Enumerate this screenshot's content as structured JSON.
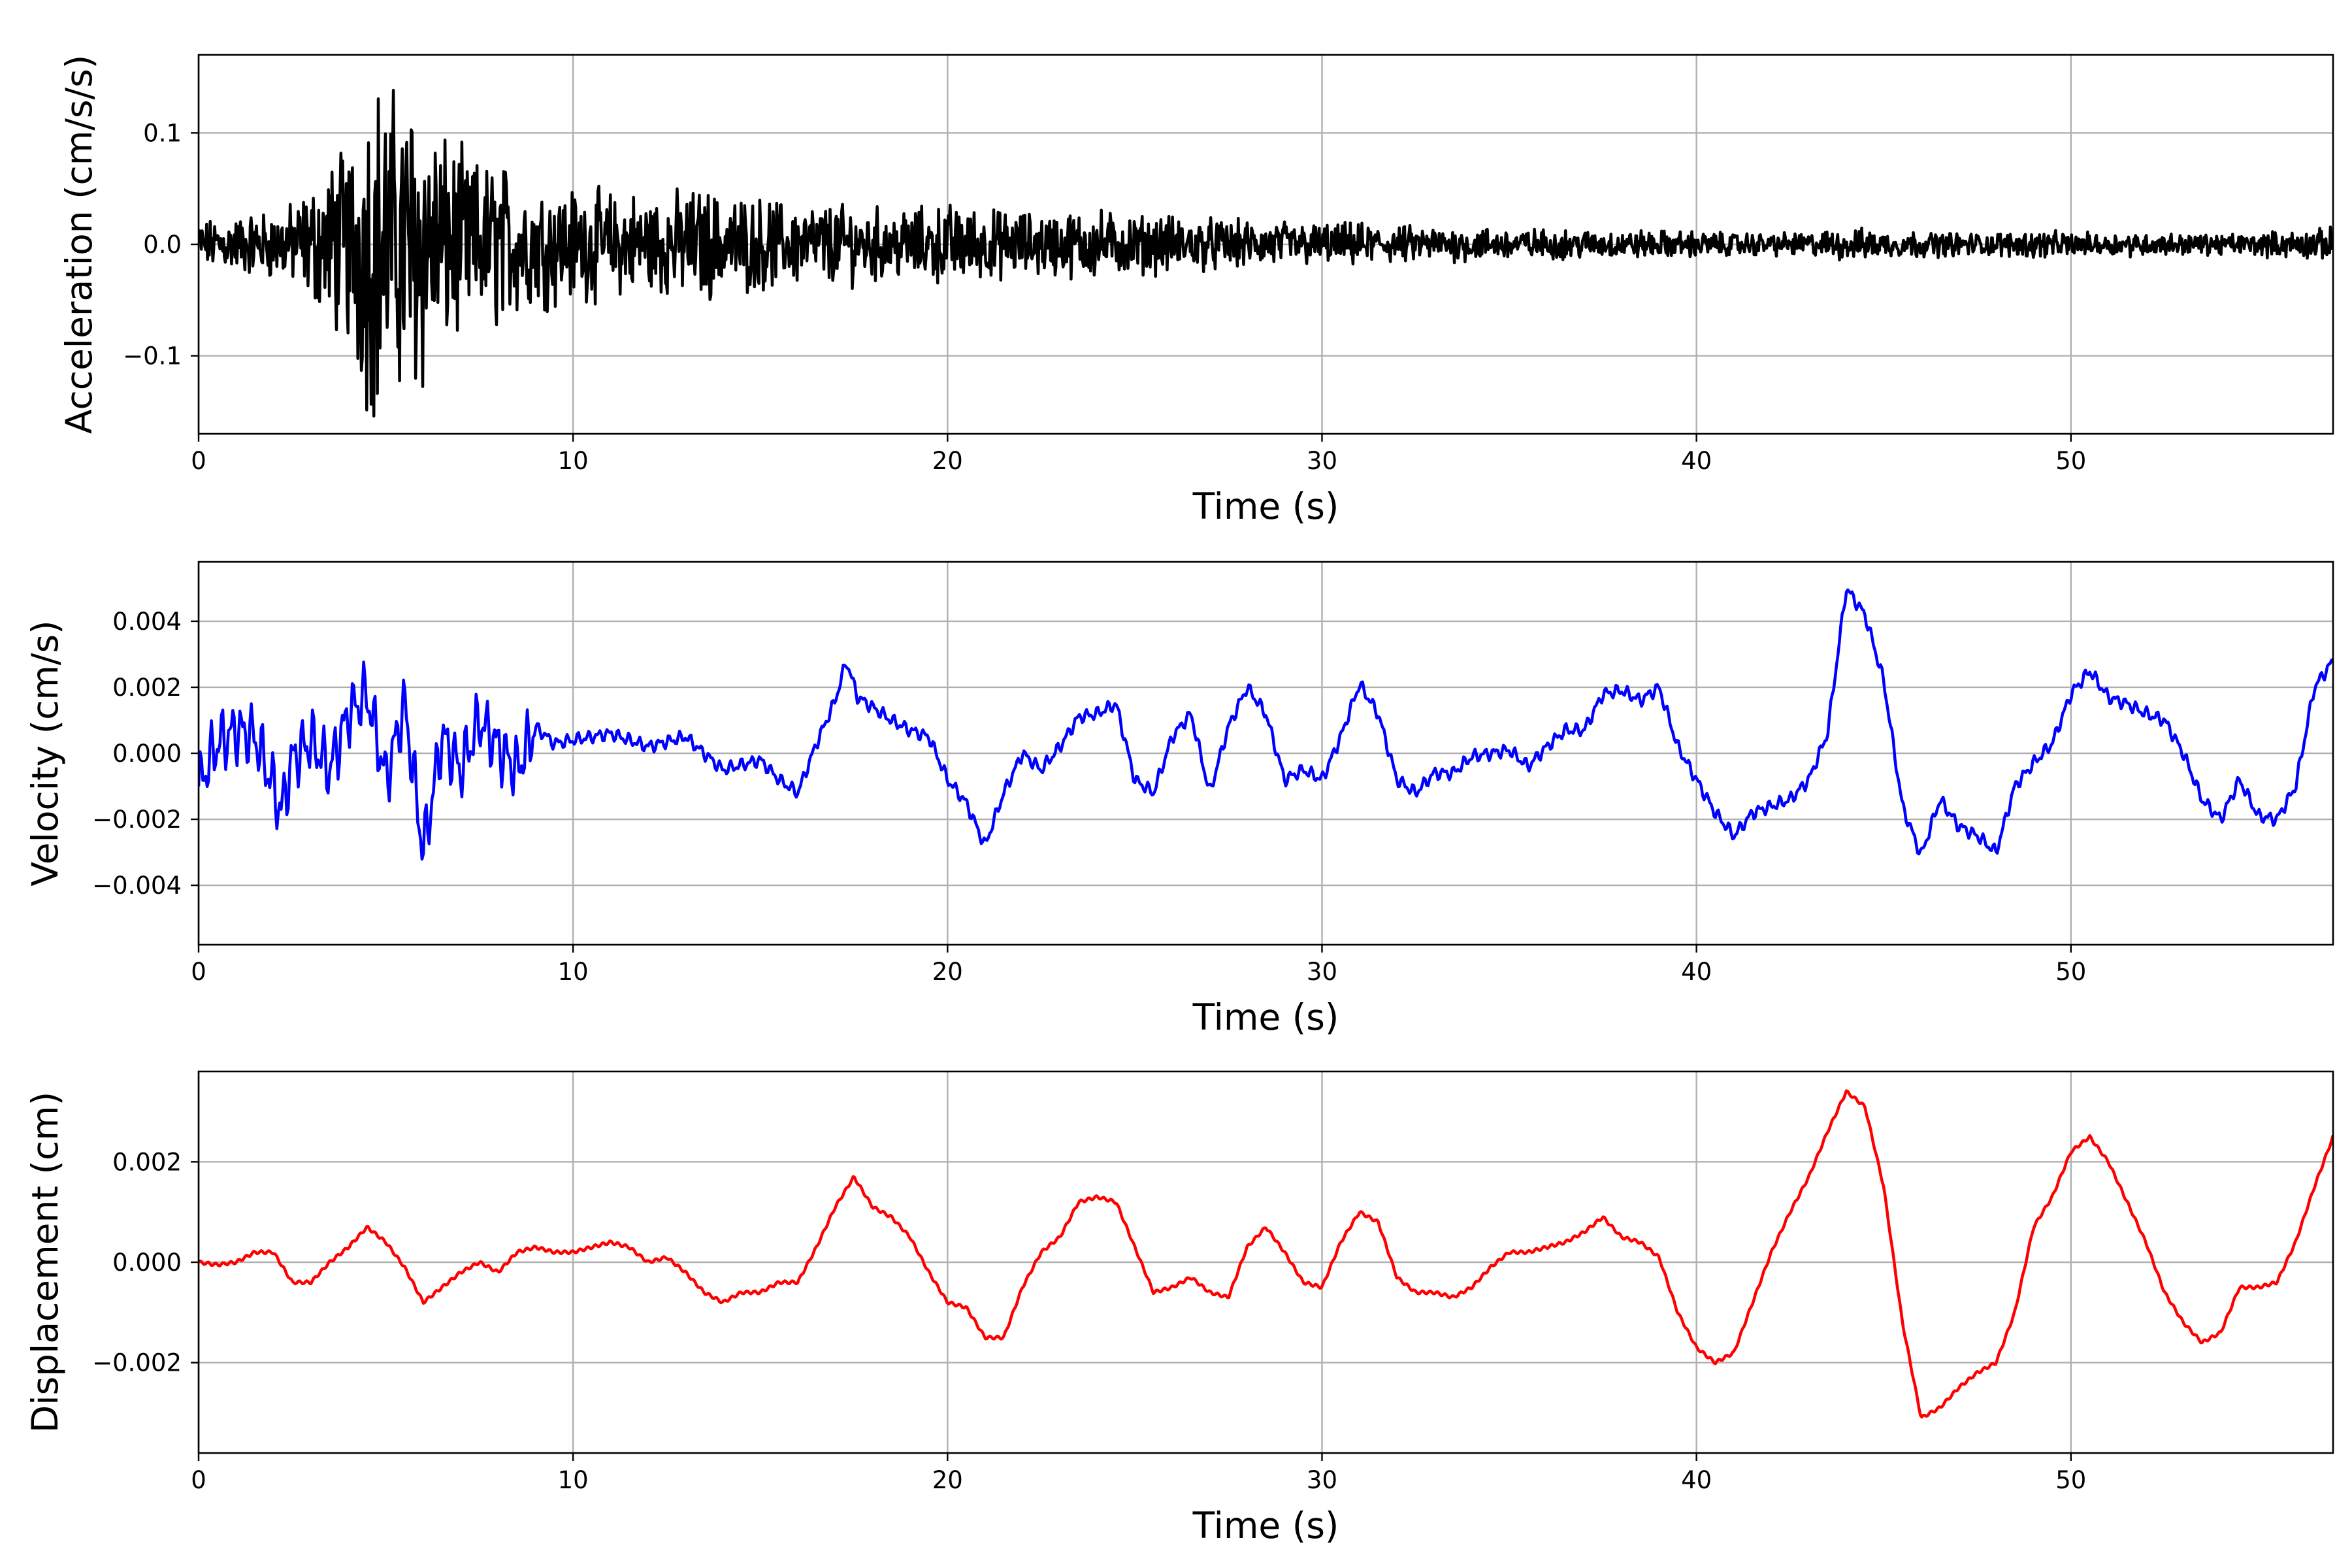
{
  "chart_data": [
    {
      "type": "line",
      "xlabel": "Time (s)",
      "ylabel": "Acceleration (cm/s/s)",
      "xlim": [
        0,
        57
      ],
      "ylim": [
        -0.17,
        0.17
      ],
      "xticks": [
        0,
        10,
        20,
        30,
        40,
        50
      ],
      "xtick_labels": [
        "0",
        "10",
        "20",
        "30",
        "40",
        "50"
      ],
      "yticks": [
        -0.1,
        0.0,
        0.1
      ],
      "ytick_labels": [
        "−0.1",
        "0.0",
        "0.1"
      ],
      "grid": true,
      "color": "#000000",
      "series": [
        {
          "x": [
            0,
            0.5,
            1,
            1.5,
            2,
            2.5,
            3,
            3.5,
            4,
            4.3,
            4.6,
            5,
            5.3,
            5.6,
            6,
            6.3,
            6.6,
            7,
            7.5,
            8,
            8.5,
            9,
            10,
            11,
            12,
            13,
            13.5,
            14,
            15,
            16,
            17,
            18,
            19,
            20,
            21,
            22,
            23,
            24,
            25,
            26,
            27,
            28,
            29,
            30,
            31,
            32,
            33,
            34,
            35,
            36,
            37,
            38,
            39,
            40,
            41,
            42,
            43,
            44,
            45,
            46,
            47,
            48,
            49,
            50,
            51,
            52,
            53,
            54,
            55,
            56,
            57
          ],
          "envelope": [
            0.02,
            0.022,
            0.025,
            0.028,
            0.03,
            0.035,
            0.05,
            0.07,
            0.09,
            0.12,
            0.15,
            0.14,
            0.13,
            0.14,
            0.13,
            0.11,
            0.09,
            0.08,
            0.07,
            0.075,
            0.06,
            0.055,
            0.05,
            0.045,
            0.045,
            0.045,
            0.05,
            0.04,
            0.04,
            0.035,
            0.035,
            0.032,
            0.03,
            0.035,
            0.03,
            0.028,
            0.028,
            0.03,
            0.025,
            0.025,
            0.022,
            0.02,
            0.02,
            0.018,
            0.018,
            0.016,
            0.015,
            0.015,
            0.014,
            0.013,
            0.012,
            0.012,
            0.012,
            0.011,
            0.01,
            0.01,
            0.01,
            0.014,
            0.012,
            0.011,
            0.01,
            0.01,
            0.012,
            0.01,
            0.01,
            0.01,
            0.009,
            0.009,
            0.01,
            0.012,
            0.014
          ]
        }
      ]
    },
    {
      "type": "line",
      "xlabel": "Time (s)",
      "ylabel": "Velocity (cm/s)",
      "xlim": [
        0,
        57
      ],
      "ylim": [
        -0.0058,
        0.0058
      ],
      "xticks": [
        0,
        10,
        20,
        30,
        40,
        50
      ],
      "xtick_labels": [
        "0",
        "10",
        "20",
        "30",
        "40",
        "50"
      ],
      "yticks": [
        -0.004,
        -0.002,
        0.0,
        0.002,
        0.004
      ],
      "ytick_labels": [
        "−0.004",
        "−0.002",
        "0.000",
        "0.002",
        "0.004"
      ],
      "grid": true,
      "color": "#0000ff",
      "series": [
        {
          "x": [
            0,
            0.5,
            1,
            1.5,
            2,
            2.2,
            2.5,
            3,
            3.5,
            4,
            4.5,
            5,
            5.5,
            6,
            6.5,
            7,
            7.5,
            8,
            8.5,
            9,
            9.5,
            10,
            11,
            12,
            13,
            14,
            15,
            15.5,
            16,
            16.5,
            17,
            17.3,
            17.6,
            18,
            18.5,
            19,
            19.5,
            20,
            20.5,
            21,
            21.5,
            22,
            22.5,
            23,
            23.5,
            24,
            24.5,
            25,
            25.5,
            26,
            26.5,
            27,
            27.5,
            28,
            28.5,
            29,
            29.5,
            30,
            30.5,
            31,
            31.5,
            32,
            32.5,
            33,
            33.5,
            34,
            34.5,
            35,
            35.5,
            36,
            36.5,
            37,
            37.5,
            38,
            38.5,
            39,
            39.5,
            40,
            40.5,
            41,
            41.5,
            42,
            42.5,
            43,
            43.5,
            44,
            44.5,
            45,
            45.5,
            46,
            46.5,
            47,
            47.5,
            48,
            48.5,
            49,
            49.5,
            50,
            50.5,
            51,
            51.5,
            52,
            52.5,
            53,
            53.5,
            54,
            54.5,
            55,
            55.5,
            56,
            56.5,
            57
          ],
          "y": [
            -0.001,
            0.0003,
            0.0007,
            0.0005,
            -0.001,
            -0.0018,
            -0.0002,
            0.0004,
            -0.0005,
            0.0012,
            0.0018,
            -0.0008,
            0.0015,
            -0.003,
            0.0005,
            -0.0005,
            0.001,
            0.0002,
            -0.0005,
            0.0008,
            0.0003,
            0.0004,
            0.0006,
            0.0002,
            0.0005,
            -0.0005,
            -0.0002,
            -0.0008,
            -0.0012,
            0.0003,
            0.0016,
            0.0028,
            0.0017,
            0.0014,
            0.001,
            0.0007,
            0.0005,
            -0.0008,
            -0.0015,
            -0.0028,
            -0.0012,
            0.0,
            -0.0005,
            0.0002,
            0.0011,
            0.0012,
            0.0015,
            -0.0008,
            -0.0012,
            0.0005,
            0.0012,
            -0.0012,
            0.0008,
            0.002,
            0.0012,
            -0.0008,
            -0.0005,
            -0.0008,
            0.0005,
            0.0021,
            0.0012,
            -0.0008,
            -0.0012,
            -0.0006,
            -0.0006,
            -0.0001,
            0.0,
            0.0001,
            -0.0004,
            0.0002,
            0.0007,
            0.0007,
            0.0018,
            0.0019,
            0.0016,
            0.002,
            0.0002,
            -0.0008,
            -0.0018,
            -0.0025,
            -0.0018,
            -0.0016,
            -0.0014,
            -0.0008,
            0.0006,
            0.005,
            0.0042,
            0.0022,
            -0.0016,
            -0.0031,
            -0.0014,
            -0.0022,
            -0.0025,
            -0.003,
            -0.001,
            -0.0003,
            0.0003,
            0.0018,
            0.0025,
            0.0017,
            0.0015,
            0.0012,
            0.001,
            0.0,
            -0.0014,
            -0.002,
            -0.0008,
            -0.0019,
            -0.002,
            -0.001,
            0.002,
            0.0028
          ]
        }
      ]
    },
    {
      "type": "line",
      "xlabel": "Time (s)",
      "ylabel": "Displacement (cm)",
      "xlim": [
        0,
        57
      ],
      "ylim": [
        -0.0038,
        0.0038
      ],
      "xticks": [
        0,
        10,
        20,
        30,
        40,
        50
      ],
      "xtick_labels": [
        "0",
        "10",
        "20",
        "30",
        "40",
        "50"
      ],
      "yticks": [
        -0.002,
        0.0,
        0.002
      ],
      "ytick_labels": [
        "−0.002",
        "0.000",
        "0.002"
      ],
      "grid": true,
      "color": "#ff0000",
      "series": [
        {
          "x": [
            0,
            0.5,
            1,
            1.5,
            2,
            2.5,
            3,
            3.5,
            4,
            4.5,
            5,
            5.5,
            6,
            6.5,
            7,
            7.5,
            8,
            8.5,
            9,
            9.5,
            10,
            10.5,
            11,
            11.5,
            12,
            12.5,
            13,
            13.5,
            14,
            14.5,
            15,
            15.5,
            16,
            16.5,
            17,
            17.5,
            18,
            18.5,
            19,
            19.5,
            20,
            20.5,
            21,
            21.5,
            22,
            22.5,
            23,
            23.5,
            24,
            24.5,
            25,
            25.5,
            26,
            26.5,
            27,
            27.5,
            28,
            28.5,
            29,
            29.5,
            30,
            30.5,
            31,
            31.5,
            32,
            32.5,
            33,
            33.5,
            34,
            34.5,
            35,
            35.5,
            36,
            36.5,
            37,
            37.5,
            38,
            38.5,
            39,
            39.5,
            40,
            40.5,
            41,
            41.5,
            42,
            42.5,
            43,
            43.5,
            44,
            44.5,
            45,
            45.5,
            46,
            46.5,
            47,
            47.5,
            48,
            48.5,
            49,
            49.5,
            50,
            50.5,
            51,
            51.5,
            52,
            52.5,
            53,
            53.5,
            54,
            54.5,
            55,
            55.5,
            56,
            56.5,
            57
          ],
          "y": [
            0.0,
            -5e-05,
            0.0,
            0.0002,
            0.0002,
            -0.0004,
            -0.0004,
            0.0,
            0.0003,
            0.0007,
            0.0004,
            -0.0001,
            -0.0008,
            -0.0005,
            -0.0002,
            0.0,
            -0.0002,
            0.0002,
            0.0003,
            0.0002,
            0.0002,
            0.0003,
            0.0004,
            0.0003,
            0.0,
            0.0001,
            -0.0002,
            -0.0006,
            -0.0008,
            -0.0006,
            -0.0006,
            -0.0004,
            -0.0004,
            0.0003,
            0.0011,
            0.0017,
            0.0011,
            0.0009,
            0.0005,
            -0.0002,
            -0.0008,
            -0.0009,
            -0.0015,
            -0.0015,
            -0.0005,
            0.0002,
            0.0005,
            0.0012,
            0.0013,
            0.0012,
            0.0003,
            -0.0006,
            -0.0005,
            -0.0003,
            -0.0006,
            -0.0007,
            0.0003,
            0.0007,
            0.0002,
            -0.0004,
            -0.0005,
            0.0004,
            0.001,
            0.0008,
            -0.0003,
            -0.0006,
            -0.0006,
            -0.0007,
            -0.0005,
            -0.0001,
            0.0002,
            0.0002,
            0.0003,
            0.0004,
            0.0006,
            0.0009,
            0.0005,
            0.0004,
            0.0001,
            -0.001,
            -0.0017,
            -0.002,
            -0.0018,
            -0.0008,
            0.0002,
            0.001,
            0.0017,
            0.0026,
            0.0034,
            0.0031,
            0.0015,
            -0.0012,
            -0.0031,
            -0.0029,
            -0.0025,
            -0.0022,
            -0.002,
            -0.001,
            0.0007,
            0.0013,
            0.0022,
            0.0025,
            0.002,
            0.0012,
            0.0004,
            -0.0006,
            -0.0012,
            -0.0016,
            -0.0014,
            -0.0005,
            -0.0005,
            -0.0004,
            0.0004,
            0.0015,
            0.0025
          ]
        }
      ]
    }
  ]
}
